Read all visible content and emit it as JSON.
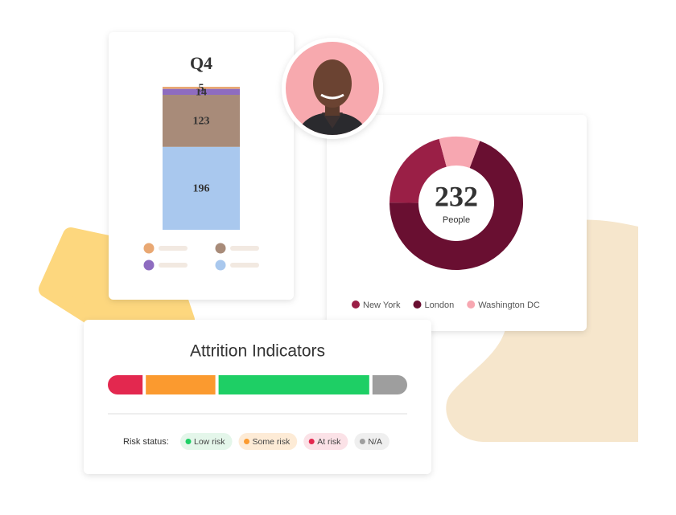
{
  "chart_data": [
    {
      "type": "stacked-bar",
      "title": "Q4",
      "series": [
        {
          "color": "#a9c8ee",
          "values": [
            196
          ]
        },
        {
          "color": "#a88b79",
          "values": [
            123
          ]
        },
        {
          "color": "#8e6cc0",
          "values": [
            14
          ]
        },
        {
          "color": "#e9a873",
          "values": [
            5
          ]
        }
      ]
    },
    {
      "type": "donut",
      "center_value": 232,
      "center_label": "People",
      "categories": [
        "New York",
        "London",
        "Washington DC"
      ],
      "colors": [
        "#9a1f46",
        "#690f31",
        "#f7a7b1"
      ],
      "values": [
        48,
        161,
        23
      ]
    },
    {
      "type": "segmented-bar",
      "title": "Attrition Indicators",
      "legend_title": "Risk status:",
      "categories": [
        "Low risk",
        "Some risk",
        "At risk",
        "N/A"
      ],
      "colors": [
        "#1ecf65",
        "#fb9a2f",
        "#e3284f",
        "#9e9e9e"
      ],
      "pill_colors": [
        "#e4f6ea",
        "#fdebd6",
        "#fbe2e7",
        "#efefef"
      ],
      "values": [
        52,
        24,
        12,
        12
      ]
    }
  ]
}
